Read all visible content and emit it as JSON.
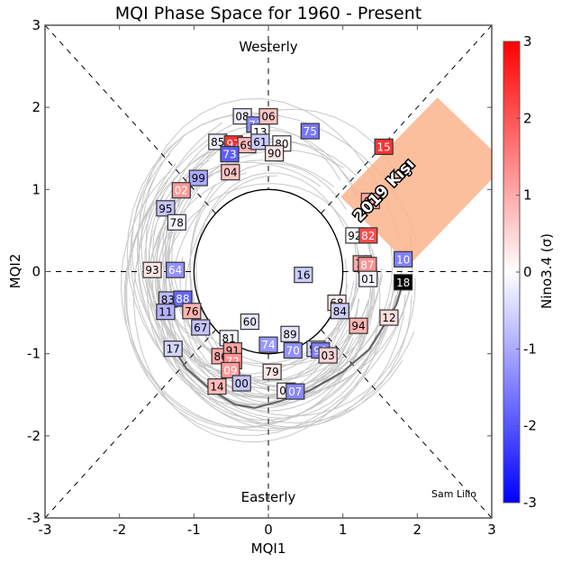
{
  "chart_data": {
    "type": "scatter",
    "title": "MQI Phase Space for 1960 - Present",
    "xlabel": "MQI1",
    "ylabel": "MQI2",
    "xlim": [
      -3,
      3
    ],
    "ylim": [
      -3,
      3
    ],
    "xticks": [
      "-3",
      "-2",
      "-1",
      "0",
      "1",
      "2",
      "3"
    ],
    "yticks": [
      "-3",
      "-2",
      "-1",
      "0",
      "1",
      "2",
      "3"
    ],
    "annotations": {
      "top": "Westerly",
      "bottom": "Easterly",
      "credit": "Sam Lillo",
      "highlight": "2019 Kışı"
    },
    "unit_circle_radius": 1,
    "colorbar": {
      "label": "Nino3.4 (σ)",
      "range": [
        -3,
        3
      ],
      "ticks": [
        "3",
        "2",
        "1",
        "0",
        "-1",
        "-2",
        "-3"
      ],
      "colors": {
        "low": "#0000ff",
        "mid": "#ffffff",
        "high": "#ff0000"
      }
    },
    "points": [
      {
        "year": "08",
        "x": -0.35,
        "y": 1.89,
        "nino": -0.2
      },
      {
        "year": "71",
        "x": -0.17,
        "y": 1.79,
        "nino": -1.4
      },
      {
        "year": "06",
        "x": 0.0,
        "y": 1.89,
        "nino": 0.7
      },
      {
        "year": "13",
        "x": -0.11,
        "y": 1.7,
        "nino": 0.0
      },
      {
        "year": "75",
        "x": 0.56,
        "y": 1.71,
        "nino": -1.6
      },
      {
        "year": "85",
        "x": -0.68,
        "y": 1.58,
        "nino": -0.2
      },
      {
        "year": "97",
        "x": -0.47,
        "y": 1.56,
        "nino": 2.4
      },
      {
        "year": "69",
        "x": -0.29,
        "y": 1.54,
        "nino": 0.8
      },
      {
        "year": "61",
        "x": -0.11,
        "y": 1.58,
        "nino": -0.6
      },
      {
        "year": "80",
        "x": 0.18,
        "y": 1.56,
        "nino": 0.1
      },
      {
        "year": "90",
        "x": 0.08,
        "y": 1.44,
        "nino": 0.3
      },
      {
        "year": "73",
        "x": -0.52,
        "y": 1.43,
        "nino": -1.9
      },
      {
        "year": "15",
        "x": 1.55,
        "y": 1.52,
        "nino": 2.4
      },
      {
        "year": "04",
        "x": -0.51,
        "y": 1.21,
        "nino": 0.7
      },
      {
        "year": "99",
        "x": -0.94,
        "y": 1.14,
        "nino": -1.0
      },
      {
        "year": "02",
        "x": -1.17,
        "y": 0.99,
        "nino": 1.2
      },
      {
        "year": "95",
        "x": -1.38,
        "y": 0.77,
        "nino": -0.7
      },
      {
        "year": "78",
        "x": -1.23,
        "y": 0.6,
        "nino": -0.1
      },
      {
        "year": "63",
        "x": 1.37,
        "y": 0.86,
        "nino": 1.0
      },
      {
        "year": "92",
        "x": 1.16,
        "y": 0.44,
        "nino": 0.0
      },
      {
        "year": "82",
        "x": 1.34,
        "y": 0.44,
        "nino": 2.1
      },
      {
        "year": "77",
        "x": 1.26,
        "y": 0.1,
        "nino": 1.0
      },
      {
        "year": "87",
        "x": 1.33,
        "y": 0.08,
        "nino": 1.3
      },
      {
        "year": "10",
        "x": 1.81,
        "y": 0.15,
        "nino": -1.5
      },
      {
        "year": "01",
        "x": 1.34,
        "y": -0.09,
        "nino": -0.1
      },
      {
        "year": "18",
        "x": 1.81,
        "y": -0.13,
        "nino": 0.0,
        "color_override": "#000000"
      },
      {
        "year": "93",
        "x": -1.56,
        "y": 0.02,
        "nino": 0.3
      },
      {
        "year": "64",
        "x": -1.25,
        "y": 0.02,
        "nino": -1.3
      },
      {
        "year": "16",
        "x": 0.47,
        "y": -0.04,
        "nino": -0.6
      },
      {
        "year": "83",
        "x": -1.35,
        "y": -0.34,
        "nino": -0.8
      },
      {
        "year": "88",
        "x": -1.15,
        "y": -0.33,
        "nino": -1.8
      },
      {
        "year": "11",
        "x": -1.38,
        "y": -0.49,
        "nino": -0.9
      },
      {
        "year": "76",
        "x": -1.03,
        "y": -0.48,
        "nino": 0.9
      },
      {
        "year": "68",
        "x": 0.92,
        "y": -0.38,
        "nino": 0.2
      },
      {
        "year": "84",
        "x": 0.96,
        "y": -0.48,
        "nino": -0.6
      },
      {
        "year": "12",
        "x": 1.62,
        "y": -0.56,
        "nino": 0.4
      },
      {
        "year": "67",
        "x": -0.91,
        "y": -0.68,
        "nino": -0.7
      },
      {
        "year": "60",
        "x": -0.25,
        "y": -0.61,
        "nino": -0.3
      },
      {
        "year": "94",
        "x": 1.21,
        "y": -0.66,
        "nino": 0.9
      },
      {
        "year": "81",
        "x": -0.53,
        "y": -0.81,
        "nino": -0.1
      },
      {
        "year": "89",
        "x": 0.29,
        "y": -0.76,
        "nino": -0.3
      },
      {
        "year": "74",
        "x": 0.0,
        "y": -0.89,
        "nino": -1.2
      },
      {
        "year": "70",
        "x": 0.33,
        "y": -0.96,
        "nino": -1.3
      },
      {
        "year": "17",
        "x": -1.28,
        "y": -0.94,
        "nino": -0.5
      },
      {
        "year": "86",
        "x": -0.64,
        "y": -1.03,
        "nino": 1.0
      },
      {
        "year": "91",
        "x": -0.48,
        "y": -0.96,
        "nino": 1.1
      },
      {
        "year": "72",
        "x": -0.48,
        "y": -1.09,
        "nino": 1.3
      },
      {
        "year": "96",
        "x": 0.64,
        "y": -0.94,
        "nino": -0.5
      },
      {
        "year": "98",
        "x": 0.7,
        "y": -0.96,
        "nino": -1.5
      },
      {
        "year": "03",
        "x": 0.8,
        "y": -1.02,
        "nino": 0.5
      },
      {
        "year": "09",
        "x": -0.51,
        "y": -1.2,
        "nino": 1.2
      },
      {
        "year": "79",
        "x": 0.05,
        "y": -1.22,
        "nino": 0.3
      },
      {
        "year": "14",
        "x": -0.69,
        "y": -1.4,
        "nino": 0.8
      },
      {
        "year": "00",
        "x": -0.36,
        "y": -1.36,
        "nino": -0.7
      },
      {
        "year": "05",
        "x": 0.24,
        "y": -1.45,
        "nino": 0.1
      },
      {
        "year": "07",
        "x": 0.36,
        "y": -1.46,
        "nino": -1.4
      }
    ],
    "highlight_path": [
      {
        "x": 1.81,
        "y": -0.13
      },
      {
        "x": 1.72,
        "y": -0.4
      },
      {
        "x": 1.62,
        "y": -0.56
      },
      {
        "x": 1.35,
        "y": -0.95
      },
      {
        "x": 1.0,
        "y": -1.22
      },
      {
        "x": 0.55,
        "y": -1.45
      },
      {
        "x": 0.15,
        "y": -1.58
      },
      {
        "x": -0.18,
        "y": -1.66
      },
      {
        "x": -0.45,
        "y": -1.62
      },
      {
        "x": -0.8,
        "y": -1.42
      },
      {
        "x": -1.1,
        "y": -1.18
      },
      {
        "x": -1.24,
        "y": -0.98
      }
    ]
  }
}
